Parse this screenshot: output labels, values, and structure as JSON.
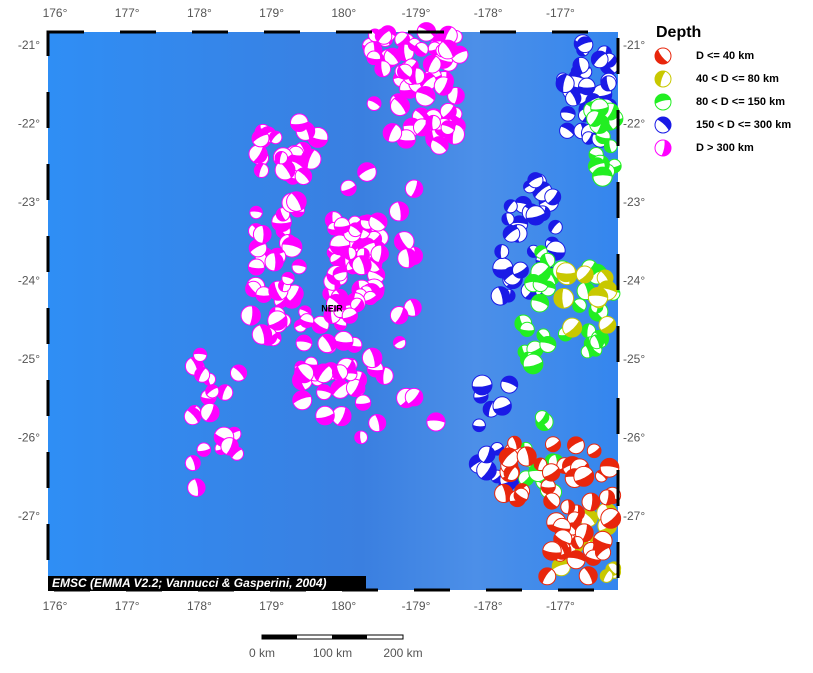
{
  "map": {
    "lon_ticks": [
      "176°",
      "177°",
      "178°",
      "179°",
      "180°",
      "-179°",
      "-178°",
      "-177°"
    ],
    "lat_ticks": [
      "-21°",
      "-22°",
      "-23°",
      "-24°",
      "-25°",
      "-26°",
      "-27°"
    ],
    "attribution": "EMSC (EMMA V2.2; Vannucci & Gasperini, 2004)",
    "station_label": "NEIR"
  },
  "legend": {
    "title": "Depth",
    "items": [
      {
        "label": "D <= 40 km",
        "color": "#e8260c"
      },
      {
        "label": "40 < D <= 80 km",
        "color": "#c8c800"
      },
      {
        "label": "80 < D <= 150 km",
        "color": "#22ee22"
      },
      {
        "label": "150 < D <= 300 km",
        "color": "#1a1ae6"
      },
      {
        "label": "D > 300 km",
        "color": "#ff00ff"
      }
    ]
  },
  "scale_bar": {
    "labels": [
      "0 km",
      "100 km",
      "200 km"
    ]
  }
}
